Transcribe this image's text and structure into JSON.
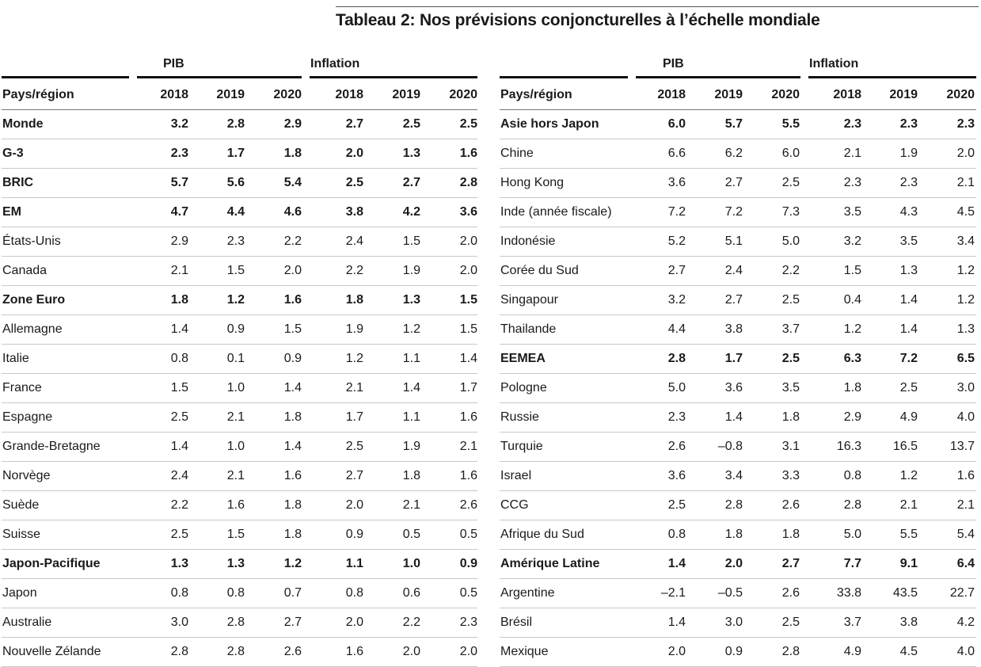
{
  "title": "Tableau 2: Nos prévisions conjoncturelles à l’échelle mondiale",
  "group_pib": "PIB",
  "group_inflation": "Inflation",
  "headers": [
    "Pays/région",
    "2018",
    "2019",
    "2020",
    "2018",
    "2019",
    "2020"
  ],
  "left_rows": [
    {
      "name": "Monde",
      "bold": true,
      "v": [
        "3.2",
        "2.8",
        "2.9",
        "2.7",
        "2.5",
        "2.5"
      ]
    },
    {
      "name": "G-3",
      "bold": true,
      "v": [
        "2.3",
        "1.7",
        "1.8",
        "2.0",
        "1.3",
        "1.6"
      ]
    },
    {
      "name": "BRIC",
      "bold": true,
      "v": [
        "5.7",
        "5.6",
        "5.4",
        "2.5",
        "2.7",
        "2.8"
      ]
    },
    {
      "name": "EM",
      "bold": true,
      "v": [
        "4.7",
        "4.4",
        "4.6",
        "3.8",
        "4.2",
        "3.6"
      ]
    },
    {
      "name": "États-Unis",
      "bold": false,
      "v": [
        "2.9",
        "2.3",
        "2.2",
        "2.4",
        "1.5",
        "2.0"
      ]
    },
    {
      "name": "Canada",
      "bold": false,
      "v": [
        "2.1",
        "1.5",
        "2.0",
        "2.2",
        "1.9",
        "2.0"
      ]
    },
    {
      "name": "Zone Euro",
      "bold": true,
      "v": [
        "1.8",
        "1.2",
        "1.6",
        "1.8",
        "1.3",
        "1.5"
      ]
    },
    {
      "name": "Allemagne",
      "bold": false,
      "v": [
        "1.4",
        "0.9",
        "1.5",
        "1.9",
        "1.2",
        "1.5"
      ]
    },
    {
      "name": "Italie",
      "bold": false,
      "v": [
        "0.8",
        "0.1",
        "0.9",
        "1.2",
        "1.1",
        "1.4"
      ]
    },
    {
      "name": "France",
      "bold": false,
      "v": [
        "1.5",
        "1.0",
        "1.4",
        "2.1",
        "1.4",
        "1.7"
      ]
    },
    {
      "name": "Espagne",
      "bold": false,
      "v": [
        "2.5",
        "2.1",
        "1.8",
        "1.7",
        "1.1",
        "1.6"
      ]
    },
    {
      "name": "Grande-Bretagne",
      "bold": false,
      "v": [
        "1.4",
        "1.0",
        "1.4",
        "2.5",
        "1.9",
        "2.1"
      ]
    },
    {
      "name": "Norvège",
      "bold": false,
      "v": [
        "2.4",
        "2.1",
        "1.6",
        "2.7",
        "1.8",
        "1.6"
      ]
    },
    {
      "name": "Suède",
      "bold": false,
      "v": [
        "2.2",
        "1.6",
        "1.8",
        "2.0",
        "2.1",
        "2.6"
      ]
    },
    {
      "name": "Suisse",
      "bold": false,
      "v": [
        "2.5",
        "1.5",
        "1.8",
        "0.9",
        "0.5",
        "0.5"
      ]
    },
    {
      "name": "Japon-Pacifique",
      "bold": true,
      "v": [
        "1.3",
        "1.3",
        "1.2",
        "1.1",
        "1.0",
        "0.9"
      ]
    },
    {
      "name": "Japon",
      "bold": false,
      "v": [
        "0.8",
        "0.8",
        "0.7",
        "0.8",
        "0.6",
        "0.5"
      ]
    },
    {
      "name": "Australie",
      "bold": false,
      "v": [
        "3.0",
        "2.8",
        "2.7",
        "2.0",
        "2.2",
        "2.3"
      ]
    },
    {
      "name": "Nouvelle Zélande",
      "bold": false,
      "v": [
        "2.8",
        "2.8",
        "2.6",
        "1.6",
        "2.0",
        "2.0"
      ]
    }
  ],
  "right_rows": [
    {
      "name": "Asie hors Japon",
      "bold": true,
      "v": [
        "6.0",
        "5.7",
        "5.5",
        "2.3",
        "2.3",
        "2.3"
      ]
    },
    {
      "name": "Chine",
      "bold": false,
      "v": [
        "6.6",
        "6.2",
        "6.0",
        "2.1",
        "1.9",
        "2.0"
      ]
    },
    {
      "name": "Hong Kong",
      "bold": false,
      "v": [
        "3.6",
        "2.7",
        "2.5",
        "2.3",
        "2.3",
        "2.1"
      ]
    },
    {
      "name": "Inde (année fiscale)",
      "bold": false,
      "v": [
        "7.2",
        "7.2",
        "7.3",
        "3.5",
        "4.3",
        "4.5"
      ]
    },
    {
      "name": "Indonésie",
      "bold": false,
      "v": [
        "5.2",
        "5.1",
        "5.0",
        "3.2",
        "3.5",
        "3.4"
      ]
    },
    {
      "name": "Corée du Sud",
      "bold": false,
      "v": [
        "2.7",
        "2.4",
        "2.2",
        "1.5",
        "1.3",
        "1.2"
      ]
    },
    {
      "name": "Singapour",
      "bold": false,
      "v": [
        "3.2",
        "2.7",
        "2.5",
        "0.4",
        "1.4",
        "1.2"
      ]
    },
    {
      "name": "Thailande",
      "bold": false,
      "v": [
        "4.4",
        "3.8",
        "3.7",
        "1.2",
        "1.4",
        "1.3"
      ]
    },
    {
      "name": "EEMEA",
      "bold": true,
      "v": [
        "2.8",
        "1.7",
        "2.5",
        "6.3",
        "7.2",
        "6.5"
      ]
    },
    {
      "name": "Pologne",
      "bold": false,
      "v": [
        "5.0",
        "3.6",
        "3.5",
        "1.8",
        "2.5",
        "3.0"
      ]
    },
    {
      "name": "Russie",
      "bold": false,
      "v": [
        "2.3",
        "1.4",
        "1.8",
        "2.9",
        "4.9",
        "4.0"
      ]
    },
    {
      "name": "Turquie",
      "bold": false,
      "v": [
        "2.6",
        "–0.8",
        "3.1",
        "16.3",
        "16.5",
        "13.7"
      ]
    },
    {
      "name": "Israel",
      "bold": false,
      "v": [
        "3.6",
        "3.4",
        "3.3",
        "0.8",
        "1.2",
        "1.6"
      ]
    },
    {
      "name": "CCG",
      "bold": false,
      "v": [
        "2.5",
        "2.8",
        "2.6",
        "2.8",
        "2.1",
        "2.1"
      ]
    },
    {
      "name": "Afrique du Sud",
      "bold": false,
      "v": [
        "0.8",
        "1.8",
        "1.8",
        "5.0",
        "5.5",
        "5.4"
      ]
    },
    {
      "name": "Amérique Latine",
      "bold": true,
      "v": [
        "1.4",
        "2.0",
        "2.7",
        "7.7",
        "9.1",
        "6.4"
      ]
    },
    {
      "name": "Argentine",
      "bold": false,
      "v": [
        "–2.1",
        "–0.5",
        "2.6",
        "33.8",
        "43.5",
        "22.7"
      ]
    },
    {
      "name": "Brésil",
      "bold": false,
      "v": [
        "1.4",
        "3.0",
        "2.5",
        "3.7",
        "3.8",
        "4.2"
      ]
    },
    {
      "name": "Mexique",
      "bold": false,
      "v": [
        "2.0",
        "0.9",
        "2.8",
        "4.9",
        "4.5",
        "4.0"
      ]
    }
  ]
}
